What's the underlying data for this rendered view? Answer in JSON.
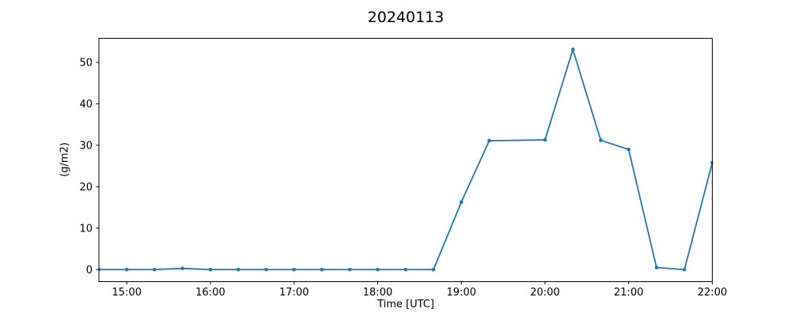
{
  "chart_data": {
    "type": "line",
    "title": "20240113",
    "xlabel": "Time [UTC]",
    "ylabel": "(g/m2)",
    "x": [
      "14:40",
      "15:00",
      "15:20",
      "15:40",
      "16:00",
      "16:20",
      "16:40",
      "17:00",
      "17:20",
      "17:40",
      "18:00",
      "18:20",
      "18:40",
      "19:00",
      "19:20",
      "20:00",
      "20:20",
      "20:40",
      "21:00",
      "21:20",
      "21:40",
      "22:00"
    ],
    "values": [
      0,
      0,
      0,
      0.3,
      0,
      0,
      0,
      0,
      0,
      0,
      0,
      0,
      0,
      16.3,
      31.1,
      31.3,
      53.1,
      31.2,
      29.0,
      0.5,
      0,
      25.8
    ],
    "x_tick_labels": [
      "15:00",
      "16:00",
      "17:00",
      "18:00",
      "19:00",
      "20:00",
      "21:00",
      "22:00"
    ],
    "y_ticks": [
      0,
      10,
      20,
      30,
      40,
      50
    ],
    "xlim": [
      "14:40",
      "22:00"
    ],
    "ylim": [
      -2.9,
      55.8
    ],
    "line_color": "#1f77b4",
    "marker": "o",
    "grid": false,
    "legend": null,
    "axis_color": "#000000",
    "background_color": "#ffffff"
  }
}
